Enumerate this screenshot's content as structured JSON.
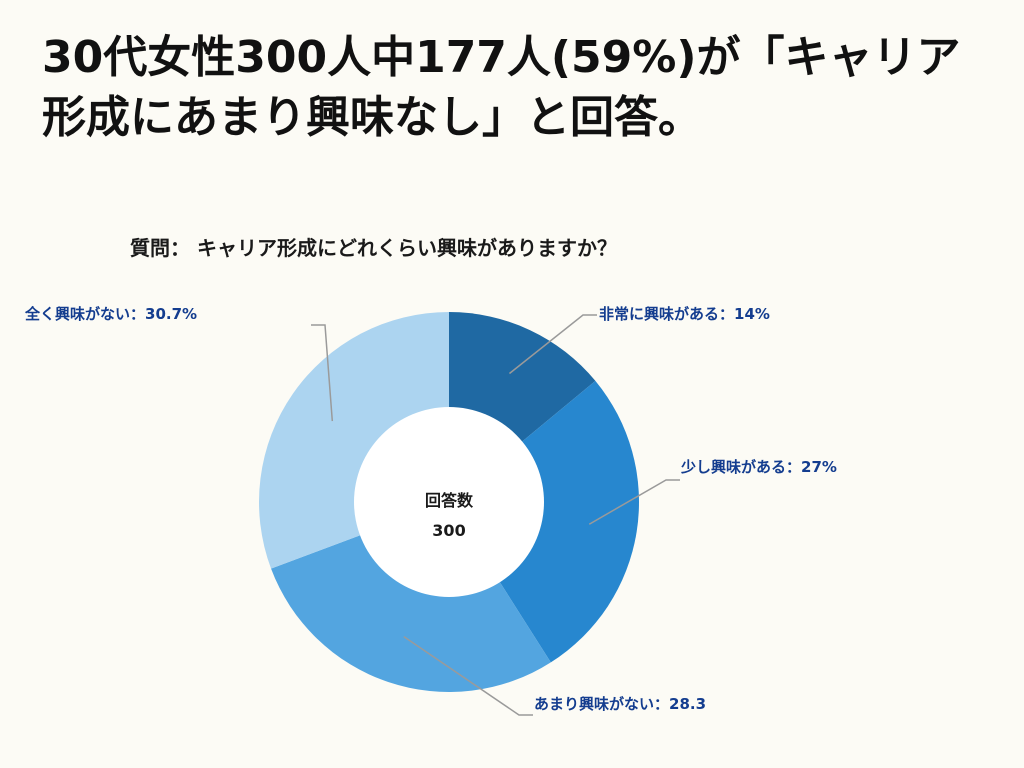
{
  "headline": "30代女性300人中177人(59%)が「キャリア形成にあまり興味なし」と回答。",
  "chart_data": {
    "type": "pie",
    "variant": "donut",
    "title": "質問： キャリア形成にどれくらい興味がありますか？",
    "center_label": "回答数",
    "center_value": "300",
    "series": [
      {
        "name": "非常に興味がある",
        "value": 14,
        "label": "非常に興味がある：14%",
        "color": "#1f69a3"
      },
      {
        "name": "少し興味がある",
        "value": 27,
        "label": "少し興味がある：27%",
        "color": "#2787cf"
      },
      {
        "name": "あまり興味がない",
        "value": 28.3,
        "label": "あまり興味がない：28.3",
        "color": "#53a5e0"
      },
      {
        "name": "全く興味がない",
        "value": 30.7,
        "label": "全く興味がない：30.7%",
        "color": "#acd4f0"
      }
    ],
    "label_color": "#143d8f",
    "leader_line_color": "#9a9a9a"
  }
}
